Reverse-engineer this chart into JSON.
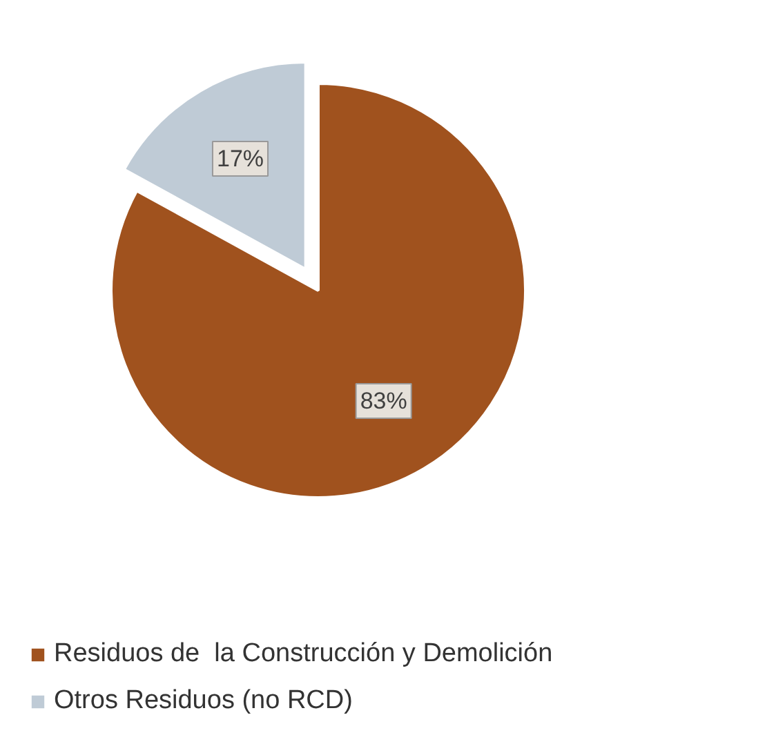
{
  "chart_data": {
    "type": "pie",
    "categories": [
      "Residuos de  la Construcción y Demolición",
      "Otros Residuos (no RCD)"
    ],
    "values": [
      83,
      17
    ],
    "colors": [
      "#a0521e",
      "#bfcbd6"
    ],
    "value_labels": [
      "83%",
      "17%"
    ],
    "legend": "bottom"
  }
}
